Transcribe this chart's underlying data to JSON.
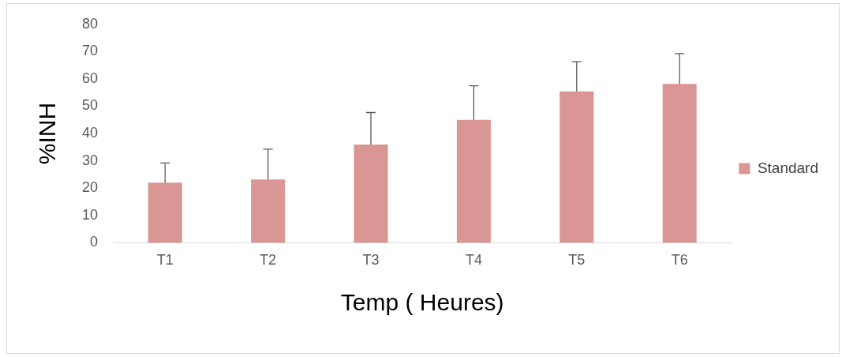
{
  "chart_data": {
    "type": "bar",
    "xlabel": "Temp ( Heures)",
    "ylabel": "%INH",
    "categories": [
      "T1",
      "T2",
      "T3",
      "T4",
      "T5",
      "T6"
    ],
    "series": [
      {
        "name": "Standard",
        "color": "#d99694",
        "values": [
          22,
          23.2,
          36,
          45,
          55.4,
          58.2
        ],
        "errors": [
          [
            22,
            29.2
          ],
          [
            23.2,
            34.3
          ],
          [
            36,
            47.7
          ],
          [
            45,
            57.5
          ],
          [
            55.4,
            66.3
          ],
          [
            58.2,
            69.3
          ]
        ]
      }
    ],
    "ylim": [
      0,
      80
    ],
    "yticks": [
      0,
      10,
      20,
      30,
      40,
      50,
      60,
      70,
      80
    ],
    "grid": false,
    "legend": "right"
  }
}
